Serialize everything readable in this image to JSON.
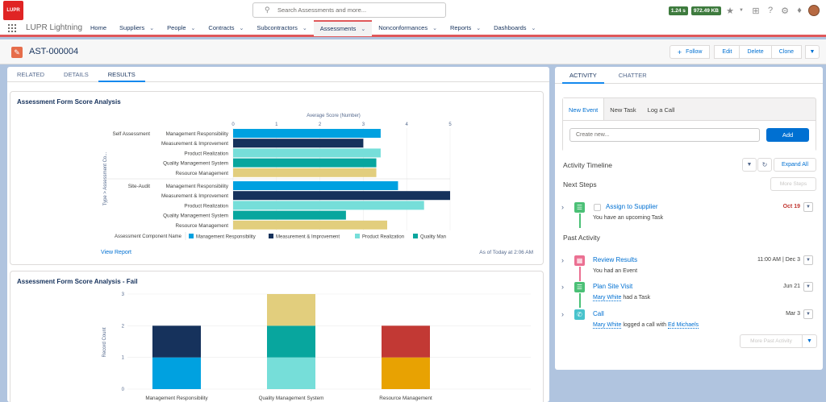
{
  "header": {
    "logo_text": "LUPR",
    "search_placeholder": "Search Assessments and more...",
    "perf_time": "1.24 s",
    "perf_mem": "972.49 KB"
  },
  "nav": {
    "app_name": "LUPR Lightning",
    "items": [
      {
        "label": "Home",
        "chevron": false
      },
      {
        "label": "Suppliers",
        "chevron": true
      },
      {
        "label": "People",
        "chevron": true
      },
      {
        "label": "Contracts",
        "chevron": true
      },
      {
        "label": "Subcontractors",
        "chevron": true
      },
      {
        "label": "Assessments",
        "chevron": true,
        "active": true
      },
      {
        "label": "Nonconformances",
        "chevron": true
      },
      {
        "label": "Reports",
        "chevron": true
      },
      {
        "label": "Dashboards",
        "chevron": true
      }
    ]
  },
  "record": {
    "title": "AST-000004",
    "buttons": {
      "follow": "Follow",
      "edit": "Edit",
      "delete": "Delete",
      "clone": "Clone"
    }
  },
  "left_tabs": [
    "RELATED",
    "DETAILS",
    "RESULTS"
  ],
  "card1": {
    "title": "Assessment Form Score Analysis",
    "view_report": "View Report",
    "as_of": "As of Today at 2:06 AM"
  },
  "card2": {
    "title": "Assessment Form Score Analysis - Fail"
  },
  "chart_data": [
    {
      "type": "bar",
      "orientation": "horizontal",
      "title": "",
      "xlabel": "Average Score (Number)",
      "ylabel": "Type > Assessment Co...",
      "xlim": [
        0,
        5
      ],
      "xticks": [
        "0",
        "1",
        "2",
        "3",
        "4",
        "5"
      ],
      "legend_title": "Assessment Component Name",
      "legend": [
        "Management Responsibility",
        "Measurement & Improvement",
        "Product Realization",
        "Quality Management System",
        "Quality Man"
      ],
      "groups": [
        {
          "name": "Self Assessment",
          "bars": [
            {
              "label": "Management Responsibility",
              "value": 3.4,
              "color": "#00a1e0"
            },
            {
              "label": "Measurement & Improvement",
              "value": 3.0,
              "color": "#16325c"
            },
            {
              "label": "Product Realization",
              "value": 3.4,
              "color": "#76ded9"
            },
            {
              "label": "Quality Management System",
              "value": 3.3,
              "color": "#08a69e"
            },
            {
              "label": "Resource Management",
              "value": 3.3,
              "color": "#e2ce7d"
            }
          ]
        },
        {
          "name": "Site-Audit",
          "bars": [
            {
              "label": "Management Responsibility",
              "value": 3.8,
              "color": "#00a1e0"
            },
            {
              "label": "Measurement & Improvement",
              "value": 5.0,
              "color": "#16325c"
            },
            {
              "label": "Product Realization",
              "value": 4.4,
              "color": "#76ded9"
            },
            {
              "label": "Quality Management System",
              "value": 2.6,
              "color": "#08a69e"
            },
            {
              "label": "Resource Management",
              "value": 3.55,
              "color": "#e2ce7d"
            }
          ]
        }
      ]
    },
    {
      "type": "bar",
      "stacked": true,
      "title": "",
      "ylabel": "Record Count",
      "ylim": [
        0,
        3
      ],
      "yticks": [
        "0",
        "1",
        "2",
        "3"
      ],
      "categories": [
        "Management Responsibility",
        "Quality Management System",
        "Resource Management"
      ],
      "stacks": [
        [
          {
            "value": 1,
            "color": "#00a1e0"
          },
          {
            "value": 1,
            "color": "#16325c"
          }
        ],
        [
          {
            "value": 1,
            "color": "#76ded9"
          },
          {
            "value": 1,
            "color": "#08a69e"
          },
          {
            "value": 1,
            "color": "#e2ce7d"
          }
        ],
        [
          {
            "value": 1,
            "color": "#e8a202"
          },
          {
            "value": 1,
            "color": "#c23934"
          }
        ]
      ]
    }
  ],
  "right": {
    "tabs": [
      "ACTIVITY",
      "CHATTER"
    ],
    "composer_tabs": [
      "New Event",
      "New Task",
      "Log a Call"
    ],
    "composer_placeholder": "Create new...",
    "add_label": "Add",
    "timeline_title": "Activity Timeline",
    "expand_all": "Expand All",
    "next_steps": "Next Steps",
    "more_steps": "More Steps",
    "past_activity": "Past Activity",
    "more_past": "More Past Activity",
    "items": {
      "task1": {
        "title": "Assign to Supplier",
        "sub": "You have an upcoming Task",
        "date": "Oct 19",
        "color": "#4bc076"
      },
      "event1": {
        "title": "Review Results",
        "sub": "You had an Event",
        "date": "11:00 AM | Dec 3",
        "color": "#eb7092"
      },
      "task2": {
        "title": "Plan Site Visit",
        "sub_link": "Mary White",
        "sub_rest": " had a Task",
        "date": "Jun 21",
        "color": "#4bc076"
      },
      "call1": {
        "title": "Call",
        "sub_link": "Mary White",
        "sub_mid": " logged a call with ",
        "sub_link2": "Ed Michaels",
        "date": "Mar 3",
        "color": "#48c3cc"
      }
    }
  }
}
